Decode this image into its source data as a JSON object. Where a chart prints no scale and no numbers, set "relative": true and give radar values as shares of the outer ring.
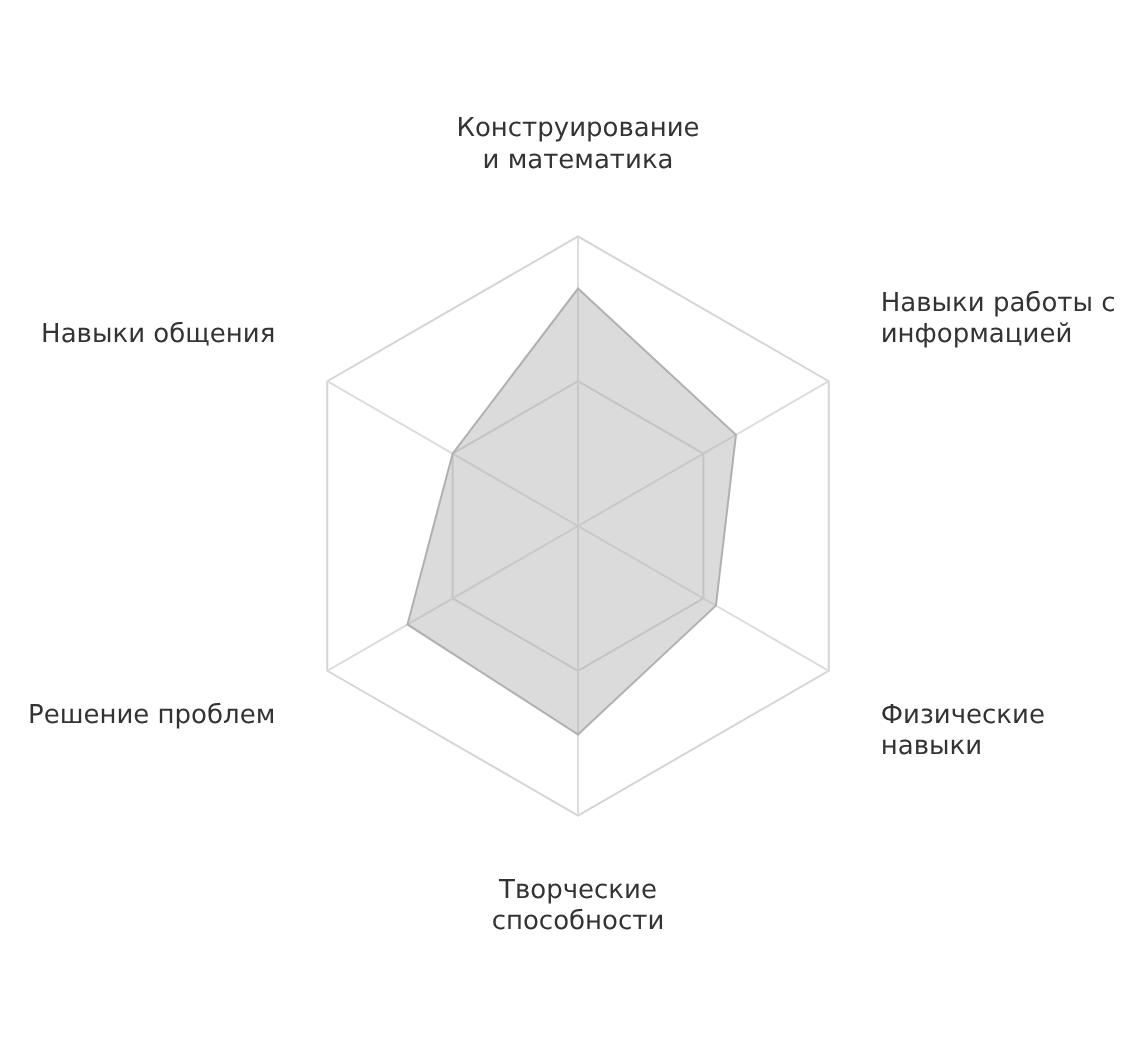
{
  "chart_data": {
    "type": "radar",
    "relative": true,
    "grid": true,
    "categories": [
      "Конструирование и математика",
      "Навыки работы с информацией",
      "Физические навыки",
      "Творческие способности",
      "Решение проблем",
      "Навыки общения"
    ],
    "series": [
      {
        "color": "#b0b0b0",
        "values": [
          0.82,
          0.63,
          0.55,
          0.72,
          0.68,
          0.5
        ]
      }
    ]
  }
}
